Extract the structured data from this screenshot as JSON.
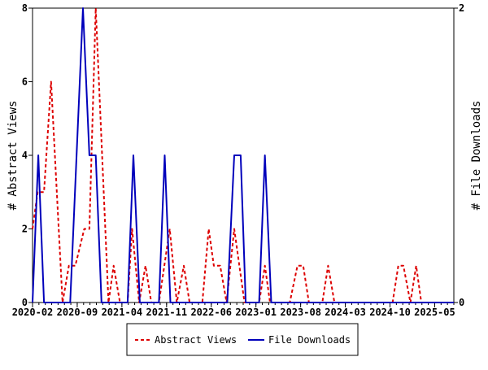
{
  "chart_data": {
    "type": "line",
    "title": "",
    "x_unit": "months since 2020-02",
    "xlim": [
      0,
      66
    ],
    "x_ticks": [
      {
        "x": 0,
        "label": "2020-02"
      },
      {
        "x": 7,
        "label": "2020-09"
      },
      {
        "x": 14,
        "label": "2021-04"
      },
      {
        "x": 21,
        "label": "2021-11"
      },
      {
        "x": 28,
        "label": "2022-06"
      },
      {
        "x": 35,
        "label": "2023-01"
      },
      {
        "x": 42,
        "label": "2023-08"
      },
      {
        "x": 49,
        "label": "2024-03"
      },
      {
        "x": 56,
        "label": "2024-10"
      },
      {
        "x": 63,
        "label": "2025-05"
      }
    ],
    "ylabel_left": "# Abstract Views",
    "ylabel_right": "# File Downloads",
    "ylim_left": [
      0,
      8
    ],
    "ylim_right": [
      0,
      2
    ],
    "yticks_left": [
      "0",
      "2",
      "4",
      "6",
      "8"
    ],
    "yticks_right": [
      "0",
      "2"
    ],
    "legend_position": "bottom-center",
    "series": [
      {
        "name": "Abstract Views",
        "axis": "left",
        "color": "#dd0000",
        "style": "dashed",
        "points": [
          [
            0,
            2
          ],
          [
            0.8,
            3
          ],
          [
            1.8,
            3
          ],
          [
            2.9,
            6
          ],
          [
            4.7,
            0
          ],
          [
            5.7,
            1
          ],
          [
            6.7,
            1
          ],
          [
            8.1,
            2
          ],
          [
            8.9,
            2
          ],
          [
            9.9,
            8
          ],
          [
            11.9,
            0
          ],
          [
            12.7,
            1
          ],
          [
            13.7,
            0
          ],
          [
            14.9,
            0
          ],
          [
            15.6,
            2
          ],
          [
            16.7,
            0
          ],
          [
            17.7,
            1
          ],
          [
            18.6,
            0
          ],
          [
            19.8,
            0
          ],
          [
            21.5,
            2
          ],
          [
            22.6,
            0
          ],
          [
            23.7,
            1
          ],
          [
            24.6,
            0
          ],
          [
            26.6,
            0
          ],
          [
            27.6,
            2
          ],
          [
            28.4,
            1
          ],
          [
            29.4,
            1
          ],
          [
            30.4,
            0
          ],
          [
            31.6,
            2
          ],
          [
            33.2,
            0
          ],
          [
            35.5,
            0
          ],
          [
            36.4,
            1
          ],
          [
            37.2,
            0
          ],
          [
            40.3,
            0
          ],
          [
            41.5,
            1
          ],
          [
            42.4,
            1
          ],
          [
            43.3,
            0
          ],
          [
            45.4,
            0
          ],
          [
            46.3,
            1
          ],
          [
            47.3,
            0
          ],
          [
            56.4,
            0
          ],
          [
            57.3,
            1
          ],
          [
            58.1,
            1
          ],
          [
            59.2,
            0
          ],
          [
            60.1,
            1
          ],
          [
            60.9,
            0
          ],
          [
            66,
            0
          ]
        ]
      },
      {
        "name": "File Downloads",
        "axis": "right",
        "color": "#0000bb",
        "style": "solid",
        "points": [
          [
            0,
            0
          ],
          [
            0.9,
            1
          ],
          [
            1.8,
            0
          ],
          [
            5.9,
            0
          ],
          [
            7.9,
            2
          ],
          [
            8.9,
            1
          ],
          [
            9.9,
            1
          ],
          [
            10.8,
            0
          ],
          [
            14.9,
            0
          ],
          [
            15.8,
            1
          ],
          [
            16.8,
            0
          ],
          [
            19.8,
            0
          ],
          [
            20.7,
            1
          ],
          [
            21.6,
            0
          ],
          [
            30.5,
            0
          ],
          [
            31.6,
            1
          ],
          [
            32.6,
            1
          ],
          [
            33.4,
            0
          ],
          [
            35.5,
            0
          ],
          [
            36.4,
            1
          ],
          [
            37.4,
            0
          ],
          [
            66,
            0
          ]
        ]
      }
    ]
  }
}
